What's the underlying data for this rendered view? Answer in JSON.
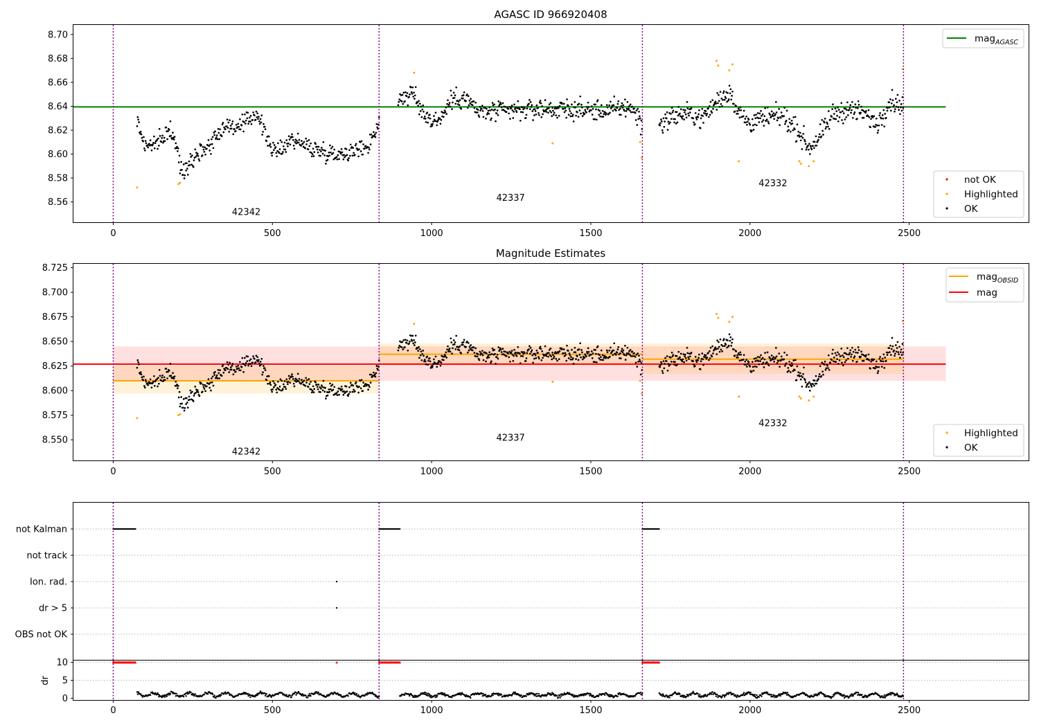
{
  "chart_data": [
    {
      "type": "scatter",
      "title": "AGASC ID 966920408",
      "xlabel": "",
      "ylabel": "",
      "xlim": [
        -125,
        2875
      ],
      "ylim": [
        8.543,
        8.708
      ],
      "xticks": [
        0,
        500,
        1000,
        1500,
        2000,
        2500
      ],
      "yticks": [
        8.56,
        8.58,
        8.6,
        8.62,
        8.64,
        8.66,
        8.68,
        8.7
      ],
      "tick_decimals": 2,
      "grid": false,
      "obs_boundaries": [
        0,
        835,
        1662,
        2482
      ],
      "observations": [
        {
          "obsid": "42342",
          "x": 418,
          "y": 8.549
        },
        {
          "obsid": "42337",
          "x": 1248,
          "y": 8.561
        },
        {
          "obsid": "42332",
          "x": 2072,
          "y": 8.573
        }
      ],
      "lines": [
        {
          "name": "mag_AGASC",
          "color": "#008000",
          "x": [
            -125,
            2615
          ],
          "y": [
            8.6395,
            8.6395
          ]
        }
      ],
      "legend_upper": {
        "position": "top-right",
        "entries": [
          {
            "label": "mag",
            "sub": "AGASC",
            "color": "#008000"
          }
        ]
      },
      "legend_lower": {
        "position": "bottom-right",
        "entries": [
          {
            "label": "not OK",
            "color": "#ff0000"
          },
          {
            "label": "Highlighted",
            "color": "#ffa500"
          },
          {
            "label": "OK",
            "color": "#000000"
          }
        ]
      },
      "scatter_segments": [
        {
          "x": [
            75,
            835
          ],
          "knots": [
            [
              75,
              8.628
            ],
            [
              100,
              8.607
            ],
            [
              150,
              8.61
            ],
            [
              175,
              8.622
            ],
            [
              200,
              8.605
            ],
            [
              215,
              8.584
            ],
            [
              250,
              8.598
            ],
            [
              300,
              8.607
            ],
            [
              350,
              8.624
            ],
            [
              400,
              8.622
            ],
            [
              450,
              8.635
            ],
            [
              480,
              8.615
            ],
            [
              510,
              8.6
            ],
            [
              560,
              8.613
            ],
            [
              620,
              8.605
            ],
            [
              700,
              8.6
            ],
            [
              760,
              8.603
            ],
            [
              800,
              8.607
            ],
            [
              835,
              8.626
            ]
          ],
          "spread": 0.006
        },
        {
          "x": [
            895,
            1662
          ],
          "knots": [
            [
              895,
              8.646
            ],
            [
              940,
              8.651
            ],
            [
              965,
              8.638
            ],
            [
              1000,
              8.628
            ],
            [
              1030,
              8.63
            ],
            [
              1060,
              8.645
            ],
            [
              1100,
              8.648
            ],
            [
              1150,
              8.635
            ],
            [
              1250,
              8.636
            ],
            [
              1350,
              8.638
            ],
            [
              1450,
              8.637
            ],
            [
              1550,
              8.636
            ],
            [
              1620,
              8.64
            ],
            [
              1655,
              8.63
            ],
            [
              1662,
              8.618
            ]
          ],
          "spread": 0.007
        },
        {
          "x": [
            1715,
            2482
          ],
          "knots": [
            [
              1715,
              8.625
            ],
            [
              1760,
              8.632
            ],
            [
              1800,
              8.634
            ],
            [
              1850,
              8.63
            ],
            [
              1900,
              8.645
            ],
            [
              1940,
              8.653
            ],
            [
              1960,
              8.635
            ],
            [
              2000,
              8.626
            ],
            [
              2050,
              8.63
            ],
            [
              2100,
              8.632
            ],
            [
              2150,
              8.62
            ],
            [
              2185,
              8.605
            ],
            [
              2220,
              8.615
            ],
            [
              2260,
              8.633
            ],
            [
              2300,
              8.637
            ],
            [
              2350,
              8.635
            ],
            [
              2400,
              8.625
            ],
            [
              2440,
              8.645
            ],
            [
              2482,
              8.64
            ]
          ],
          "spread": 0.007
        }
      ],
      "highlighted_points": [
        [
          75,
          8.572
        ],
        [
          205,
          8.575
        ],
        [
          210,
          8.576
        ],
        [
          945,
          8.668
        ],
        [
          1380,
          8.609
        ],
        [
          1655,
          8.61
        ],
        [
          1660,
          8.597
        ],
        [
          1895,
          8.678
        ],
        [
          1900,
          8.674
        ],
        [
          1935,
          8.67
        ],
        [
          1945,
          8.675
        ],
        [
          1965,
          8.594
        ],
        [
          2155,
          8.594
        ],
        [
          2160,
          8.592
        ],
        [
          2185,
          8.59
        ],
        [
          2200,
          8.594
        ],
        [
          2480,
          8.671
        ]
      ],
      "notok_points": []
    },
    {
      "type": "scatter",
      "title": "Magnitude Estimates",
      "xlabel": "",
      "ylabel": "",
      "xlim": [
        -125,
        2875
      ],
      "ylim": [
        8.529,
        8.729
      ],
      "xticks": [
        0,
        500,
        1000,
        1500,
        2000,
        2500
      ],
      "yticks": [
        8.55,
        8.575,
        8.6,
        8.625,
        8.65,
        8.675,
        8.7,
        8.725
      ],
      "tick_decimals": 3,
      "grid": false,
      "obs_boundaries": [
        0,
        835,
        1662,
        2482
      ],
      "observations": [
        {
          "obsid": "42342",
          "x": 418,
          "y": 8.535
        },
        {
          "obsid": "42337",
          "x": 1248,
          "y": 8.549
        },
        {
          "obsid": "42332",
          "x": 2072,
          "y": 8.564
        }
      ],
      "bands": [
        {
          "name": "mag range",
          "color": "#ff0000",
          "opacity": 0.12,
          "x": [
            0,
            2615
          ],
          "y": [
            8.61,
            8.645
          ]
        },
        {
          "name": "mag_OBSID 42342 range",
          "color": "#ffa500",
          "opacity": 0.15,
          "x": [
            0,
            835
          ],
          "y": [
            8.597,
            8.625
          ]
        },
        {
          "name": "mag_OBSID 42337 range",
          "color": "#ffa500",
          "opacity": 0.15,
          "x": [
            835,
            1662
          ],
          "y": [
            8.626,
            8.648
          ]
        },
        {
          "name": "mag_OBSID 42332 range",
          "color": "#ffa500",
          "opacity": 0.15,
          "x": [
            1662,
            2482
          ],
          "y": [
            8.617,
            8.648
          ]
        }
      ],
      "lines": [
        {
          "name": "mag",
          "color": "#ff0000",
          "x": [
            -125,
            2615
          ],
          "y": [
            8.627,
            8.627
          ]
        },
        {
          "name": "mag_OBSID 42342",
          "color": "#ffa500",
          "x": [
            0,
            835
          ],
          "y": [
            8.61,
            8.61
          ]
        },
        {
          "name": "mag_OBSID 42337",
          "color": "#ffa500",
          "x": [
            835,
            1662
          ],
          "y": [
            8.637,
            8.637
          ]
        },
        {
          "name": "mag_OBSID 42332",
          "color": "#ffa500",
          "x": [
            1662,
            2482
          ],
          "y": [
            8.632,
            8.632
          ]
        }
      ],
      "legend_upper": {
        "position": "top-right",
        "entries": [
          {
            "label": "mag",
            "sub": "OBSID",
            "color": "#ffa500"
          },
          {
            "label": "mag",
            "sub": "",
            "color": "#ff0000"
          }
        ]
      },
      "legend_lower": {
        "position": "bottom-right",
        "entries": [
          {
            "label": "Highlighted",
            "color": "#ffa500"
          },
          {
            "label": "OK",
            "color": "#000000"
          }
        ]
      },
      "scatter_segments": [
        {
          "x": [
            75,
            835
          ],
          "knots": [
            [
              75,
              8.628
            ],
            [
              100,
              8.607
            ],
            [
              150,
              8.61
            ],
            [
              175,
              8.622
            ],
            [
              200,
              8.605
            ],
            [
              215,
              8.584
            ],
            [
              250,
              8.598
            ],
            [
              300,
              8.607
            ],
            [
              350,
              8.624
            ],
            [
              400,
              8.622
            ],
            [
              450,
              8.635
            ],
            [
              480,
              8.615
            ],
            [
              510,
              8.6
            ],
            [
              560,
              8.613
            ],
            [
              620,
              8.605
            ],
            [
              700,
              8.6
            ],
            [
              760,
              8.603
            ],
            [
              800,
              8.607
            ],
            [
              835,
              8.626
            ]
          ],
          "spread": 0.006
        },
        {
          "x": [
            895,
            1662
          ],
          "knots": [
            [
              895,
              8.646
            ],
            [
              940,
              8.651
            ],
            [
              965,
              8.638
            ],
            [
              1000,
              8.628
            ],
            [
              1030,
              8.63
            ],
            [
              1060,
              8.645
            ],
            [
              1100,
              8.648
            ],
            [
              1150,
              8.635
            ],
            [
              1250,
              8.636
            ],
            [
              1350,
              8.638
            ],
            [
              1450,
              8.637
            ],
            [
              1550,
              8.636
            ],
            [
              1620,
              8.64
            ],
            [
              1655,
              8.63
            ],
            [
              1662,
              8.618
            ]
          ],
          "spread": 0.007
        },
        {
          "x": [
            1715,
            2482
          ],
          "knots": [
            [
              1715,
              8.625
            ],
            [
              1760,
              8.632
            ],
            [
              1800,
              8.634
            ],
            [
              1850,
              8.63
            ],
            [
              1900,
              8.645
            ],
            [
              1940,
              8.653
            ],
            [
              1960,
              8.635
            ],
            [
              2000,
              8.626
            ],
            [
              2050,
              8.63
            ],
            [
              2100,
              8.632
            ],
            [
              2150,
              8.62
            ],
            [
              2185,
              8.605
            ],
            [
              2220,
              8.615
            ],
            [
              2260,
              8.633
            ],
            [
              2300,
              8.637
            ],
            [
              2350,
              8.635
            ],
            [
              2400,
              8.625
            ],
            [
              2440,
              8.645
            ],
            [
              2482,
              8.64
            ]
          ],
          "spread": 0.007
        }
      ],
      "highlighted_points": [
        [
          75,
          8.572
        ],
        [
          205,
          8.575
        ],
        [
          210,
          8.576
        ],
        [
          945,
          8.668
        ],
        [
          1380,
          8.609
        ],
        [
          1655,
          8.61
        ],
        [
          1660,
          8.597
        ],
        [
          1895,
          8.678
        ],
        [
          1900,
          8.674
        ],
        [
          1935,
          8.67
        ],
        [
          1945,
          8.675
        ],
        [
          1965,
          8.594
        ],
        [
          2155,
          8.594
        ],
        [
          2160,
          8.592
        ],
        [
          2185,
          8.59
        ],
        [
          2200,
          8.594
        ],
        [
          2480,
          8.671
        ]
      ],
      "notok_points": []
    },
    {
      "type": "scatter",
      "title": "",
      "xlabel": "",
      "ylabel": "",
      "xlim": [
        -125,
        2875
      ],
      "obs_boundaries": [
        0,
        835,
        1662,
        2482
      ],
      "flag_categories": [
        "not Kalman",
        "not track",
        "Ion. rad.",
        "dr > 5",
        "OBS not OK"
      ],
      "flag_grid": "dotted",
      "flags": [
        {
          "category": "not Kalman",
          "ranges": [
            [
              0,
              70
            ],
            [
              835,
              900
            ],
            [
              1662,
              1715
            ]
          ]
        },
        {
          "category": "Ion. rad.",
          "points": [
            702
          ]
        },
        {
          "category": "dr > 5",
          "points": [
            702
          ]
        }
      ]
    },
    {
      "type": "scatter",
      "title": "",
      "xlabel": "",
      "ylabel": "dr",
      "xlim": [
        -125,
        2875
      ],
      "ylim": [
        -0.5,
        10.5
      ],
      "xticks": [
        0,
        500,
        1000,
        1500,
        2000,
        2500
      ],
      "yticks": [
        0,
        5,
        10
      ],
      "tick_decimals": 0,
      "grid": "dotted",
      "obs_boundaries": [
        0,
        835,
        1662,
        2482
      ],
      "clipped_value": 10,
      "clipped_ranges": [
        [
          0,
          70
        ],
        [
          835,
          900
        ],
        [
          1662,
          1715
        ]
      ],
      "clipped_points": [
        702
      ],
      "dr_segments": [
        {
          "x": [
            75,
            835
          ],
          "mean": 1.0,
          "amp": 0.5
        },
        {
          "x": [
            900,
            1662
          ],
          "mean": 0.9,
          "amp": 0.4
        },
        {
          "x": [
            1715,
            2482
          ],
          "mean": 0.9,
          "amp": 0.5
        }
      ]
    }
  ]
}
